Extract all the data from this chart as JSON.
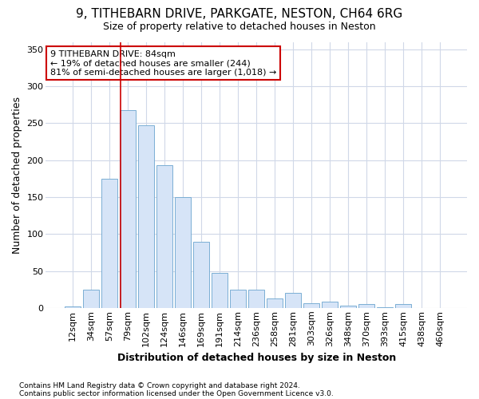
{
  "title1": "9, TITHEBARN DRIVE, PARKGATE, NESTON, CH64 6RG",
  "title2": "Size of property relative to detached houses in Neston",
  "xlabel": "Distribution of detached houses by size in Neston",
  "ylabel": "Number of detached properties",
  "bar_labels": [
    "12sqm",
    "34sqm",
    "57sqm",
    "79sqm",
    "102sqm",
    "124sqm",
    "146sqm",
    "169sqm",
    "191sqm",
    "214sqm",
    "236sqm",
    "258sqm",
    "281sqm",
    "303sqm",
    "326sqm",
    "348sqm",
    "370sqm",
    "393sqm",
    "415sqm",
    "438sqm",
    "460sqm"
  ],
  "bar_values": [
    2,
    25,
    175,
    268,
    247,
    193,
    150,
    90,
    47,
    25,
    25,
    13,
    20,
    6,
    8,
    3,
    5,
    1,
    5,
    0,
    0
  ],
  "bar_color": "#d6e4f7",
  "bar_edge_color": "#7baed4",
  "vline_bar_index": 3,
  "annotation_box_text_line1": "9 TITHEBARN DRIVE: 84sqm",
  "annotation_box_text_line2": "← 19% of detached houses are smaller (244)",
  "annotation_box_text_line3": "81% of semi-detached houses are larger (1,018) →",
  "ylim": [
    0,
    360
  ],
  "yticks": [
    0,
    50,
    100,
    150,
    200,
    250,
    300,
    350
  ],
  "footnote1": "Contains HM Land Registry data © Crown copyright and database right 2024.",
  "footnote2": "Contains public sector information licensed under the Open Government Licence v3.0.",
  "background_color": "#ffffff",
  "plot_bg_color": "#ffffff",
  "grid_color": "#d0d8e8",
  "annotation_box_bg": "#ffffff",
  "annotation_box_edge": "#cc0000",
  "vline_color": "#cc0000",
  "title1_fontsize": 11,
  "title2_fontsize": 9,
  "axis_label_fontsize": 9,
  "tick_fontsize": 8,
  "annotation_fontsize": 8,
  "footnote_fontsize": 6.5
}
